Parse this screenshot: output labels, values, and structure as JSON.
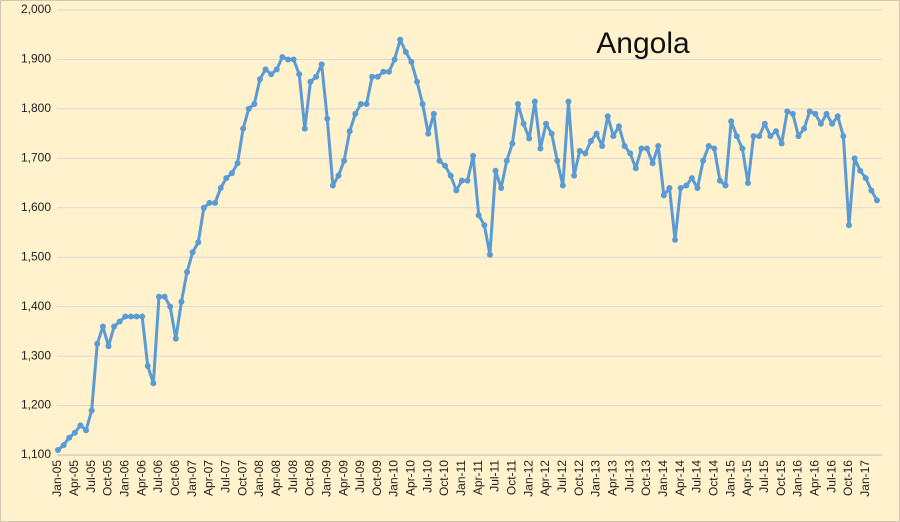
{
  "chart_data": {
    "type": "line",
    "title": "Angola",
    "categories": [
      "Jan-05",
      null,
      null,
      "Apr-05",
      null,
      null,
      "Jul-05",
      null,
      null,
      "Oct-05",
      null,
      null,
      "Jan-06",
      null,
      null,
      "Apr-06",
      null,
      null,
      "Jul-06",
      null,
      null,
      "Oct-06",
      null,
      null,
      "Jan-07",
      null,
      null,
      "Apr-07",
      null,
      null,
      "Jul-07",
      null,
      null,
      "Oct-07",
      null,
      null,
      "Jan-08",
      null,
      null,
      "Apr-08",
      null,
      null,
      "Jul-08",
      null,
      null,
      "Oct-08",
      null,
      null,
      "Jan-09",
      null,
      null,
      "Apr-09",
      null,
      null,
      "Jul-09",
      null,
      null,
      "Oct-09",
      null,
      null,
      "Jan-10",
      null,
      null,
      "Apr-10",
      null,
      null,
      "Jul-10",
      null,
      null,
      "Oct-10",
      null,
      null,
      "Jan-11",
      null,
      null,
      "Apr-11",
      null,
      null,
      "Jul-11",
      null,
      null,
      "Oct-11",
      null,
      null,
      "Jan-12",
      null,
      null,
      "Apr-12",
      null,
      null,
      "Jul-12",
      null,
      null,
      "Oct-12",
      null,
      null,
      "Jan-13",
      null,
      null,
      "Apr-13",
      null,
      null,
      "Jul-13",
      null,
      null,
      "Oct-13",
      null,
      null,
      "Jan-14",
      null,
      null,
      "Apr-14",
      null,
      null,
      "Jul-14",
      null,
      null,
      "Oct-14",
      null,
      null,
      "Jan-15",
      null,
      null,
      "Apr-15",
      null,
      null,
      "Jul-15",
      null,
      null,
      "Oct-15",
      null,
      null,
      "Jan-16",
      null,
      null,
      "Apr-16",
      null,
      null,
      "Jul-16",
      null,
      null,
      "Oct-16",
      null,
      null,
      "Jan-17",
      null,
      null
    ],
    "values": [
      1110,
      1120,
      1135,
      1145,
      1160,
      1150,
      1190,
      1325,
      1360,
      1320,
      1360,
      1370,
      1380,
      1380,
      1380,
      1380,
      1280,
      1245,
      1420,
      1420,
      1400,
      1335,
      1410,
      1470,
      1510,
      1530,
      1600,
      1610,
      1610,
      1640,
      1660,
      1670,
      1690,
      1760,
      1800,
      1810,
      1860,
      1880,
      1870,
      1880,
      1905,
      1900,
      1900,
      1870,
      1760,
      1855,
      1865,
      1890,
      1780,
      1645,
      1665,
      1695,
      1755,
      1790,
      1810,
      1810,
      1865,
      1865,
      1875,
      1875,
      1900,
      1940,
      1915,
      1895,
      1855,
      1810,
      1750,
      1790,
      1695,
      1685,
      1665,
      1635,
      1655,
      1655,
      1705,
      1585,
      1565,
      1505,
      1675,
      1640,
      1695,
      1730,
      1810,
      1770,
      1740,
      1815,
      1720,
      1770,
      1750,
      1695,
      1645,
      1815,
      1665,
      1715,
      1710,
      1735,
      1750,
      1725,
      1785,
      1745,
      1765,
      1725,
      1710,
      1680,
      1720,
      1720,
      1690,
      1725,
      1625,
      1640,
      1535,
      1640,
      1645,
      1660,
      1640,
      1695,
      1725,
      1720,
      1655,
      1645,
      1775,
      1745,
      1720,
      1650,
      1745,
      1745,
      1770,
      1745,
      1755,
      1730,
      1795,
      1790,
      1745,
      1760,
      1795,
      1790,
      1770,
      1790,
      1770,
      1785,
      1745,
      1565,
      1700,
      1675,
      1660,
      1635,
      1615
    ],
    "color": "#5b9bd5",
    "ylim": [
      1100,
      2000
    ],
    "yticks": [
      {
        "value": 1100,
        "label": "1,100"
      },
      {
        "value": 1200,
        "label": "1,200"
      },
      {
        "value": 1300,
        "label": "1,300"
      },
      {
        "value": 1400,
        "label": "1,400"
      },
      {
        "value": 1500,
        "label": "1,500"
      },
      {
        "value": 1600,
        "label": "1,600"
      },
      {
        "value": 1700,
        "label": "1,700"
      },
      {
        "value": 1800,
        "label": "1,800"
      },
      {
        "value": 1900,
        "label": "1,900"
      },
      {
        "value": 2000,
        "label": "2,000"
      }
    ],
    "grid": true
  }
}
